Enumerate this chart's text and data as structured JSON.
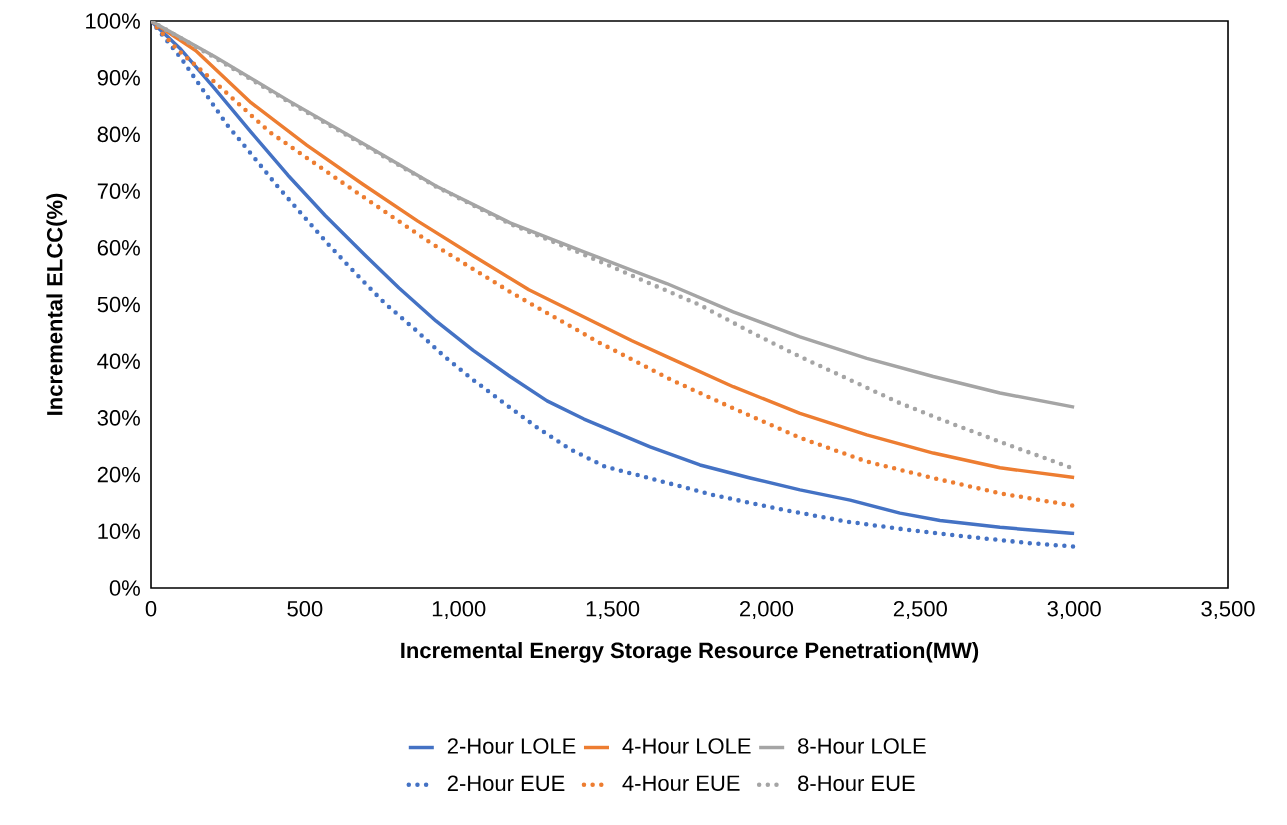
{
  "chart_data": {
    "type": "line",
    "xlabel": "Incremental Energy Storage Resource Penetration(MW)",
    "ylabel": "Incremental ELCC(%)",
    "xlim": [
      0,
      3500
    ],
    "ylim": [
      0,
      100
    ],
    "xticks": [
      0,
      500,
      {
        "value": 1000,
        "label": "1,000"
      },
      {
        "value": 1500,
        "label": "1,500"
      },
      {
        "value": 2000,
        "label": "2,000"
      },
      {
        "value": 2500,
        "label": "2,500"
      },
      {
        "value": 3000,
        "label": "3,000"
      },
      {
        "value": 3500,
        "label": "3,500"
      }
    ],
    "yticks": [
      {
        "value": 0,
        "label": "0%"
      },
      {
        "value": 10,
        "label": "10%"
      },
      {
        "value": 20,
        "label": "20%"
      },
      {
        "value": 30,
        "label": "30%"
      },
      {
        "value": 40,
        "label": "40%"
      },
      {
        "value": 50,
        "label": "50%"
      },
      {
        "value": 60,
        "label": "60%"
      },
      {
        "value": 70,
        "label": "70%"
      },
      {
        "value": 80,
        "label": "80%"
      },
      {
        "value": 90,
        "label": "90%"
      },
      {
        "value": 100,
        "label": "100%"
      }
    ],
    "legend": "bottom",
    "series": [
      {
        "name": "2-Hour LOLE",
        "color": "#4472c4",
        "line_style": "solid",
        "x": [
          0,
          97,
          205,
          325,
          445,
          566,
          686,
          806,
          926,
          1047,
          1167,
          1287,
          1407,
          1622,
          1784,
          1947,
          2109,
          2272,
          2434,
          2564,
          2759,
          3000
        ],
        "values": [
          100,
          95,
          88.2,
          80.4,
          72.8,
          65.7,
          59.2,
          52.9,
          47.1,
          41.9,
          37.3,
          33,
          29.8,
          24.9,
          21.7,
          19.4,
          17.3,
          15.5,
          13.2,
          11.9,
          10.7,
          9.6
        ]
      },
      {
        "name": "4-Hour LOLE",
        "color": "#ed7d31",
        "line_style": "solid",
        "x": [
          0,
          145,
          325,
          506,
          686,
          867,
          1047,
          1228,
          1407,
          1563,
          1676,
          1892,
          2109,
          2326,
          2542,
          2759,
          3000
        ],
        "values": [
          100,
          94.8,
          85.6,
          78.1,
          71.3,
          64.7,
          58.6,
          52.6,
          47.8,
          43.6,
          40.8,
          35.5,
          30.8,
          27,
          23.8,
          21.2,
          19.5
        ]
      },
      {
        "name": "8-Hour LOLE",
        "color": "#a5a5a5",
        "line_style": "solid",
        "x": [
          0,
          205,
          445,
          686,
          926,
          1167,
          1407,
          1563,
          1676,
          1892,
          2109,
          2326,
          2542,
          2759,
          3000
        ],
        "values": [
          100,
          93.8,
          86,
          78.5,
          70.9,
          64.4,
          59.3,
          56,
          53.7,
          48.7,
          44.3,
          40.5,
          37.3,
          34.4,
          31.9
        ]
      },
      {
        "name": "2-Hour  EUE",
        "color": "#4472c4",
        "line_style": "dotted",
        "x": [
          0,
          97,
          247,
          331,
          410,
          494,
          578,
          663,
          758,
          854,
          952,
          1047,
          1150,
          1252,
          1361,
          1476,
          1632,
          1827,
          2044,
          2262,
          2467,
          2662,
          2857,
          3000
        ],
        "values": [
          100,
          93.5,
          81.7,
          76.2,
          70.9,
          65.7,
          60.5,
          55.6,
          50.3,
          45.8,
          40.9,
          36.7,
          32.5,
          28.4,
          24.5,
          21.4,
          19.2,
          16.4,
          13.9,
          11.7,
          10.2,
          9,
          7.9,
          7.3
        ]
      },
      {
        "name": "4-Hour  EUE",
        "color": "#ed7d31",
        "line_style": "dotted",
        "x": [
          0,
          85,
          187,
          386,
          638,
          905,
          1177,
          1456,
          1687,
          1892,
          2109,
          2326,
          2542,
          2759,
          3000
        ],
        "values": [
          100,
          95,
          90.2,
          80.4,
          70.9,
          61,
          51.9,
          43.3,
          36.8,
          31.7,
          26.5,
          22.3,
          19.4,
          16.7,
          14.5
        ]
      },
      {
        "name": "8-Hour  EUE",
        "color": "#a5a5a5",
        "line_style": "dotted",
        "x": [
          0,
          205,
          445,
          686,
          926,
          1167,
          1407,
          1622,
          1784,
          1947,
          2109,
          2272,
          2434,
          2597,
          2759,
          3000
        ],
        "values": [
          100,
          93.6,
          85.8,
          78.3,
          70.8,
          64.2,
          58.8,
          53.7,
          49.9,
          45.2,
          40.8,
          36.7,
          32.6,
          29.1,
          25.8,
          21
        ]
      }
    ]
  }
}
